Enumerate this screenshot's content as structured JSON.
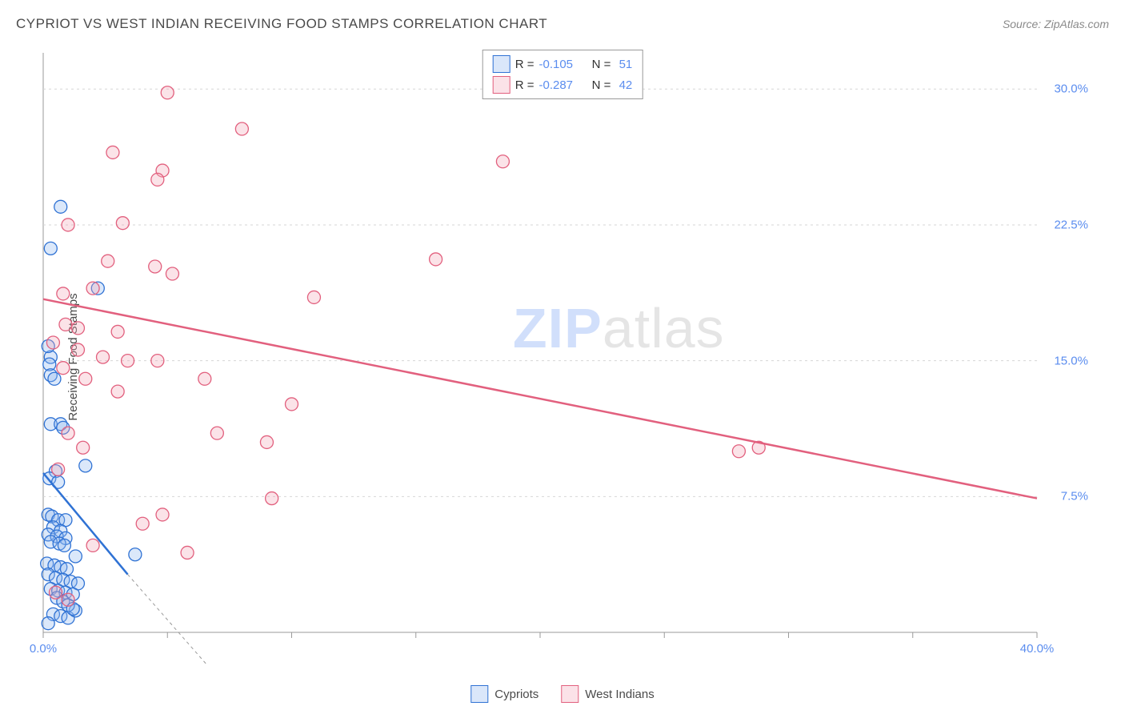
{
  "title": "CYPRIOT VS WEST INDIAN RECEIVING FOOD STAMPS CORRELATION CHART",
  "source_label": "Source: ZipAtlas.com",
  "ylabel": "Receiving Food Stamps",
  "watermark": {
    "strong": "ZIP",
    "rest": "atlas"
  },
  "chart": {
    "type": "scatter",
    "background_color": "#ffffff",
    "grid_color": "#d6d6d6",
    "axis_color": "#9a9a9a",
    "tick_label_color": "#5b8def",
    "xlim": [
      0,
      40
    ],
    "ylim": [
      0,
      32
    ],
    "xticks": [
      0,
      5,
      10,
      15,
      20,
      25,
      30,
      35,
      40
    ],
    "xtick_labels": [
      "0.0%",
      "",
      "",
      "",
      "",
      "",
      "",
      "",
      "40.0%"
    ],
    "yticks": [
      7.5,
      15.0,
      22.5,
      30.0
    ],
    "ytick_labels": [
      "7.5%",
      "15.0%",
      "22.5%",
      "30.0%"
    ],
    "marker_radius": 8,
    "marker_stroke_width": 1.3,
    "marker_fill_opacity": 0.32,
    "trend_width": 2.5,
    "trend_dash_color": "#9a9a9a",
    "series": [
      {
        "name": "Cypriots",
        "color_stroke": "#2f72d4",
        "color_fill": "#8fb6ef",
        "trend_color": "#2f72d4",
        "R": "-0.105",
        "N": "51",
        "trend": {
          "x1": 0,
          "y1": 8.8,
          "x2": 3.4,
          "y2": 3.2,
          "x2_dash": 8,
          "y2_dash": -4
        },
        "points": [
          {
            "x": 0.7,
            "y": 23.5
          },
          {
            "x": 0.3,
            "y": 21.2
          },
          {
            "x": 2.2,
            "y": 19.0
          },
          {
            "x": 1.7,
            "y": 9.2
          },
          {
            "x": 3.7,
            "y": 4.3
          },
          {
            "x": 0.3,
            "y": 15.2
          },
          {
            "x": 0.2,
            "y": 15.8
          },
          {
            "x": 0.25,
            "y": 14.8
          },
          {
            "x": 0.3,
            "y": 14.2
          },
          {
            "x": 0.45,
            "y": 14.0
          },
          {
            "x": 0.3,
            "y": 11.5
          },
          {
            "x": 0.7,
            "y": 11.5
          },
          {
            "x": 0.8,
            "y": 11.3
          },
          {
            "x": 0.5,
            "y": 8.9
          },
          {
            "x": 0.25,
            "y": 8.5
          },
          {
            "x": 0.6,
            "y": 8.3
          },
          {
            "x": 0.2,
            "y": 6.5
          },
          {
            "x": 0.35,
            "y": 6.4
          },
          {
            "x": 0.6,
            "y": 6.2
          },
          {
            "x": 0.9,
            "y": 6.2
          },
          {
            "x": 0.4,
            "y": 5.8
          },
          {
            "x": 0.7,
            "y": 5.6
          },
          {
            "x": 0.2,
            "y": 5.4
          },
          {
            "x": 0.55,
            "y": 5.3
          },
          {
            "x": 0.9,
            "y": 5.2
          },
          {
            "x": 0.3,
            "y": 5.0
          },
          {
            "x": 0.65,
            "y": 4.9
          },
          {
            "x": 0.85,
            "y": 4.8
          },
          {
            "x": 0.15,
            "y": 3.8
          },
          {
            "x": 0.45,
            "y": 3.7
          },
          {
            "x": 0.7,
            "y": 3.6
          },
          {
            "x": 0.95,
            "y": 3.5
          },
          {
            "x": 1.3,
            "y": 4.2
          },
          {
            "x": 0.2,
            "y": 3.2
          },
          {
            "x": 0.5,
            "y": 3.0
          },
          {
            "x": 0.8,
            "y": 2.9
          },
          {
            "x": 1.1,
            "y": 2.8
          },
          {
            "x": 1.4,
            "y": 2.7
          },
          {
            "x": 0.3,
            "y": 2.4
          },
          {
            "x": 0.6,
            "y": 2.3
          },
          {
            "x": 0.9,
            "y": 2.2
          },
          {
            "x": 1.2,
            "y": 2.1
          },
          {
            "x": 0.4,
            "y": 1.0
          },
          {
            "x": 0.7,
            "y": 0.9
          },
          {
            "x": 1.0,
            "y": 0.8
          },
          {
            "x": 0.2,
            "y": 0.5
          },
          {
            "x": 1.3,
            "y": 1.2
          },
          {
            "x": 0.55,
            "y": 1.9
          },
          {
            "x": 0.8,
            "y": 1.7
          },
          {
            "x": 1.0,
            "y": 1.5
          },
          {
            "x": 1.2,
            "y": 1.3
          }
        ]
      },
      {
        "name": "West Indians",
        "color_stroke": "#e2607e",
        "color_fill": "#f3a9b9",
        "trend_color": "#e2607e",
        "R": "-0.287",
        "N": "42",
        "trend": {
          "x1": 0,
          "y1": 18.4,
          "x2": 40,
          "y2": 7.4
        },
        "points": [
          {
            "x": 5.0,
            "y": 29.8
          },
          {
            "x": 8.0,
            "y": 27.8
          },
          {
            "x": 2.8,
            "y": 26.5
          },
          {
            "x": 4.8,
            "y": 25.5
          },
          {
            "x": 4.6,
            "y": 25.0
          },
          {
            "x": 18.5,
            "y": 26.0
          },
          {
            "x": 3.2,
            "y": 22.6
          },
          {
            "x": 1.0,
            "y": 22.5
          },
          {
            "x": 2.6,
            "y": 20.5
          },
          {
            "x": 4.5,
            "y": 20.2
          },
          {
            "x": 5.2,
            "y": 19.8
          },
          {
            "x": 15.8,
            "y": 20.6
          },
          {
            "x": 2.0,
            "y": 19.0
          },
          {
            "x": 0.8,
            "y": 18.7
          },
          {
            "x": 10.9,
            "y": 18.5
          },
          {
            "x": 0.9,
            "y": 17.0
          },
          {
            "x": 1.4,
            "y": 16.8
          },
          {
            "x": 3.0,
            "y": 16.6
          },
          {
            "x": 0.4,
            "y": 16.0
          },
          {
            "x": 1.4,
            "y": 15.6
          },
          {
            "x": 2.4,
            "y": 15.2
          },
          {
            "x": 3.4,
            "y": 15.0
          },
          {
            "x": 4.6,
            "y": 15.0
          },
          {
            "x": 0.8,
            "y": 14.6
          },
          {
            "x": 1.7,
            "y": 14.0
          },
          {
            "x": 6.5,
            "y": 14.0
          },
          {
            "x": 3.0,
            "y": 13.3
          },
          {
            "x": 10.0,
            "y": 12.6
          },
          {
            "x": 1.0,
            "y": 11.0
          },
          {
            "x": 7.0,
            "y": 11.0
          },
          {
            "x": 1.6,
            "y": 10.2
          },
          {
            "x": 9.0,
            "y": 10.5
          },
          {
            "x": 9.2,
            "y": 7.4
          },
          {
            "x": 28.0,
            "y": 10.0
          },
          {
            "x": 28.8,
            "y": 10.2
          },
          {
            "x": 0.6,
            "y": 9.0
          },
          {
            "x": 4.0,
            "y": 6.0
          },
          {
            "x": 4.8,
            "y": 6.5
          },
          {
            "x": 2.0,
            "y": 4.8
          },
          {
            "x": 5.8,
            "y": 4.4
          },
          {
            "x": 0.5,
            "y": 2.2
          },
          {
            "x": 1.0,
            "y": 1.8
          }
        ]
      }
    ]
  },
  "legend_top_labels": {
    "R": "R =",
    "N": "N ="
  },
  "legend_bottom": [
    {
      "label": "Cypriots",
      "series_index": 0
    },
    {
      "label": "West Indians",
      "series_index": 1
    }
  ]
}
